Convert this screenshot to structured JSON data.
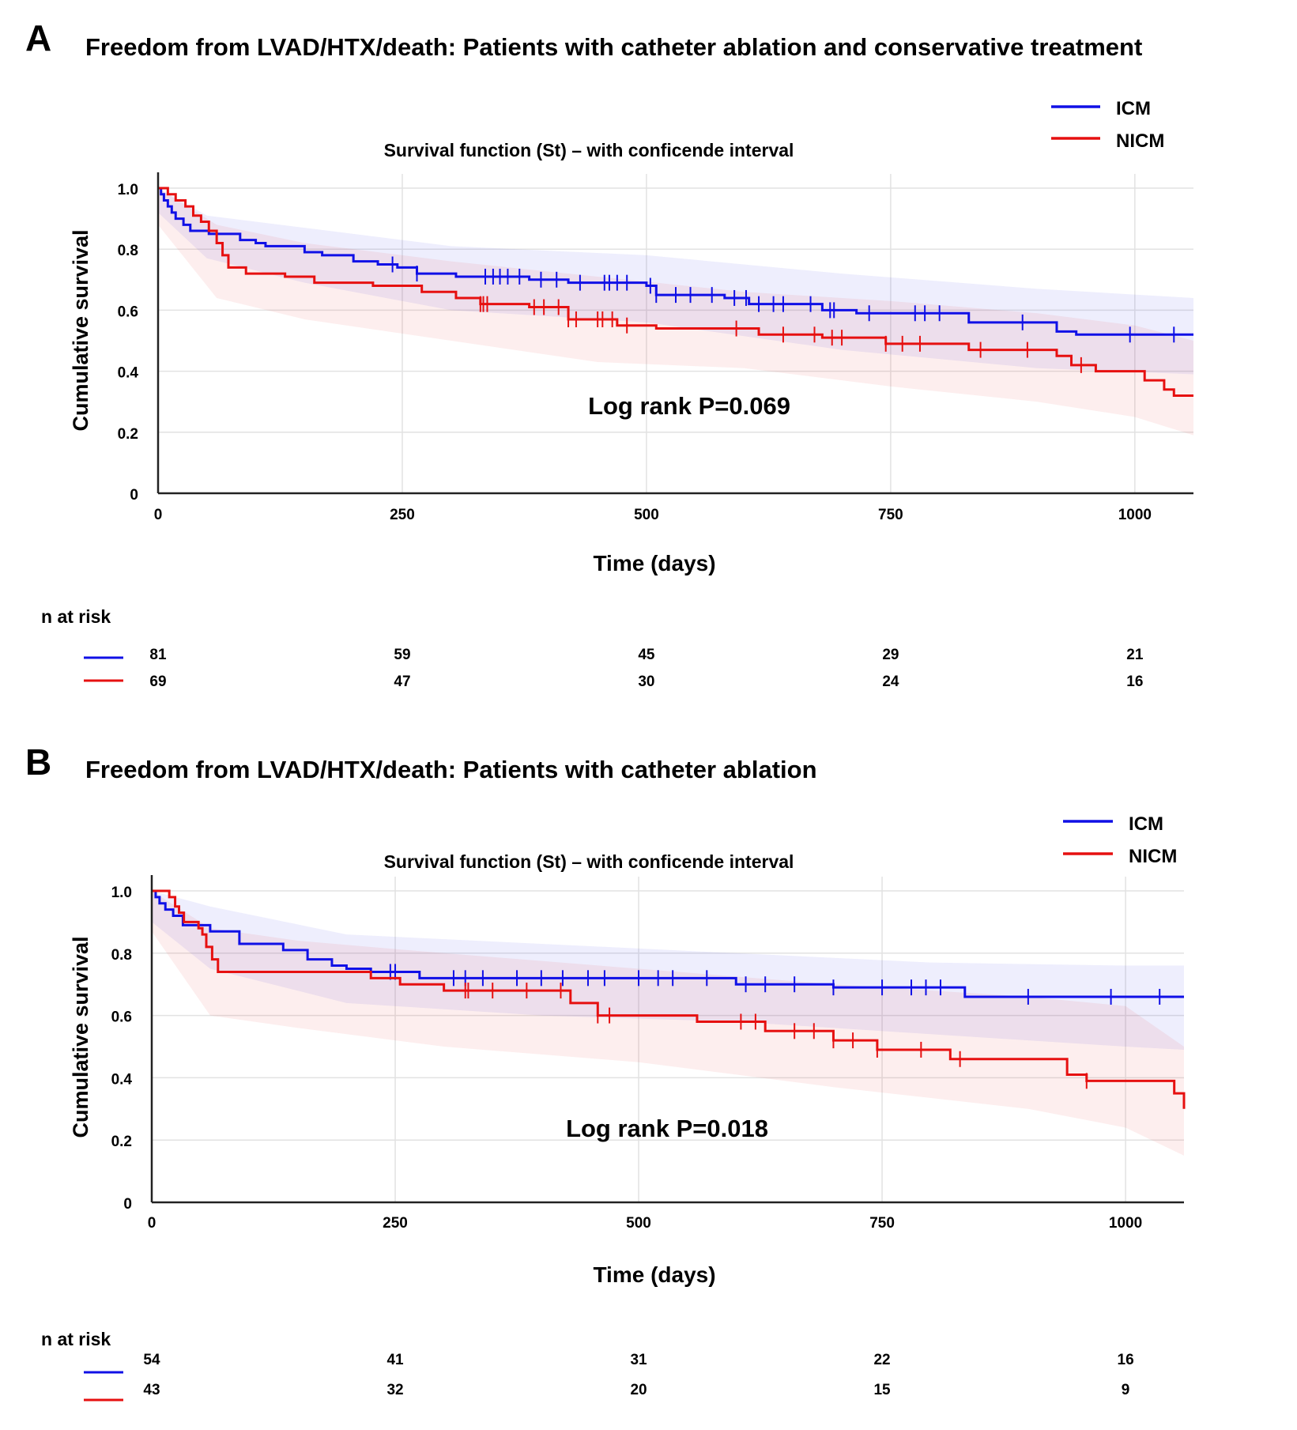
{
  "colors": {
    "icm": "#1010e6",
    "nicm": "#e61010",
    "grid": "#e2e2e2",
    "axis": "#222222"
  },
  "chart_data": [
    {
      "type": "line",
      "panel_letter": "A",
      "title": "Freedom from LVAD/HTX/death: Patients with catheter ablation and conservative treatment",
      "subtitle": "Survival function (St) – with conficende interval",
      "xlabel": "Time (days)",
      "ylabel": "Cumulative survival",
      "annotation": "Log rank P=0.069",
      "xlim": [
        0,
        1060
      ],
      "ylim": [
        0,
        1.0
      ],
      "x_ticks": [
        "0",
        "250",
        "500",
        "750",
        "1000"
      ],
      "y_ticks": [
        "0",
        "0.2",
        "0.4",
        "0.6",
        "0.8",
        "1.0"
      ],
      "legend": [
        "ICM",
        "NICM"
      ],
      "legend_position": "top-right",
      "series": [
        {
          "name": "ICM",
          "steps": [
            [
              0,
              1.0
            ],
            [
              3,
              0.98
            ],
            [
              6,
              0.96
            ],
            [
              10,
              0.94
            ],
            [
              14,
              0.92
            ],
            [
              18,
              0.9
            ],
            [
              26,
              0.88
            ],
            [
              33,
              0.86
            ],
            [
              52,
              0.85
            ],
            [
              84,
              0.83
            ],
            [
              100,
              0.82
            ],
            [
              110,
              0.81
            ],
            [
              150,
              0.79
            ],
            [
              168,
              0.78
            ],
            [
              200,
              0.76
            ],
            [
              225,
              0.75
            ],
            [
              245,
              0.74
            ],
            [
              265,
              0.72
            ],
            [
              305,
              0.71
            ],
            [
              380,
              0.7
            ],
            [
              420,
              0.69
            ],
            [
              470,
              0.69
            ],
            [
              500,
              0.68
            ],
            [
              510,
              0.65
            ],
            [
              580,
              0.64
            ],
            [
              605,
              0.62
            ],
            [
              680,
              0.6
            ],
            [
              715,
              0.59
            ],
            [
              830,
              0.56
            ],
            [
              920,
              0.53
            ],
            [
              940,
              0.52
            ],
            [
              1060,
              0.52
            ]
          ],
          "censor_x": [
            240,
            265,
            335,
            343,
            350,
            358,
            370,
            392,
            408,
            432,
            457,
            462,
            470,
            480,
            504,
            510,
            530,
            545,
            567,
            590,
            602,
            615,
            630,
            640,
            668,
            688,
            692,
            728,
            775,
            785,
            800,
            885,
            995,
            1040
          ],
          "ci_lower": [
            [
              0,
              0.92
            ],
            [
              50,
              0.77
            ],
            [
              150,
              0.69
            ],
            [
              300,
              0.6
            ],
            [
              500,
              0.56
            ],
            [
              700,
              0.47
            ],
            [
              900,
              0.41
            ],
            [
              1060,
              0.39
            ]
          ],
          "ci_upper": [
            [
              0,
              1.0
            ],
            [
              50,
              0.91
            ],
            [
              150,
              0.87
            ],
            [
              300,
              0.81
            ],
            [
              500,
              0.78
            ],
            [
              700,
              0.72
            ],
            [
              900,
              0.67
            ],
            [
              1060,
              0.64
            ]
          ]
        },
        {
          "name": "NICM",
          "steps": [
            [
              0,
              1.0
            ],
            [
              10,
              0.98
            ],
            [
              18,
              0.96
            ],
            [
              28,
              0.94
            ],
            [
              36,
              0.91
            ],
            [
              44,
              0.89
            ],
            [
              52,
              0.86
            ],
            [
              60,
              0.82
            ],
            [
              66,
              0.78
            ],
            [
              72,
              0.74
            ],
            [
              90,
              0.72
            ],
            [
              130,
              0.71
            ],
            [
              160,
              0.69
            ],
            [
              220,
              0.68
            ],
            [
              270,
              0.66
            ],
            [
              305,
              0.64
            ],
            [
              330,
              0.62
            ],
            [
              380,
              0.61
            ],
            [
              420,
              0.57
            ],
            [
              470,
              0.55
            ],
            [
              510,
              0.54
            ],
            [
              615,
              0.52
            ],
            [
              680,
              0.51
            ],
            [
              745,
              0.49
            ],
            [
              830,
              0.47
            ],
            [
              920,
              0.45
            ],
            [
              935,
              0.42
            ],
            [
              960,
              0.4
            ],
            [
              1010,
              0.37
            ],
            [
              1030,
              0.34
            ],
            [
              1040,
              0.32
            ],
            [
              1060,
              0.32
            ]
          ],
          "censor_x": [
            330,
            333,
            337,
            385,
            395,
            410,
            420,
            428,
            450,
            455,
            465,
            480,
            592,
            640,
            672,
            690,
            700,
            745,
            762,
            780,
            842,
            890,
            945
          ],
          "ci_lower": [
            [
              0,
              0.88
            ],
            [
              60,
              0.64
            ],
            [
              150,
              0.57
            ],
            [
              300,
              0.5
            ],
            [
              450,
              0.43
            ],
            [
              600,
              0.41
            ],
            [
              750,
              0.35
            ],
            [
              900,
              0.3
            ],
            [
              1000,
              0.25
            ],
            [
              1060,
              0.19
            ]
          ],
          "ci_upper": [
            [
              0,
              1.0
            ],
            [
              60,
              0.88
            ],
            [
              150,
              0.82
            ],
            [
              300,
              0.76
            ],
            [
              450,
              0.71
            ],
            [
              600,
              0.66
            ],
            [
              750,
              0.63
            ],
            [
              900,
              0.59
            ],
            [
              1000,
              0.55
            ],
            [
              1060,
              0.5
            ]
          ]
        }
      ],
      "risk_table": {
        "label": "n at risk",
        "times": [
          0,
          250,
          500,
          750,
          1000
        ],
        "rows": [
          {
            "name": "ICM",
            "values": [
              "81",
              "59",
              "45",
              "29",
              "21"
            ]
          },
          {
            "name": "NICM",
            "values": [
              "69",
              "47",
              "30",
              "24",
              "16"
            ]
          }
        ]
      }
    },
    {
      "type": "line",
      "panel_letter": "B",
      "title": "Freedom from LVAD/HTX/death: Patients with catheter ablation",
      "subtitle": "Survival function (St) – with conficende interval",
      "xlabel": "Time (days)",
      "ylabel": "Cumulative survival",
      "annotation": "Log rank P=0.018",
      "xlim": [
        0,
        1060
      ],
      "ylim": [
        0,
        1.0
      ],
      "x_ticks": [
        "0",
        "250",
        "500",
        "750",
        "1000"
      ],
      "y_ticks": [
        "0",
        "0.2",
        "0.4",
        "0.6",
        "0.8",
        "1.0"
      ],
      "legend": [
        "ICM",
        "NICM"
      ],
      "legend_position": "top-right",
      "series": [
        {
          "name": "ICM",
          "steps": [
            [
              0,
              1.0
            ],
            [
              4,
              0.98
            ],
            [
              8,
              0.96
            ],
            [
              14,
              0.94
            ],
            [
              22,
              0.92
            ],
            [
              32,
              0.89
            ],
            [
              60,
              0.87
            ],
            [
              90,
              0.83
            ],
            [
              135,
              0.81
            ],
            [
              160,
              0.78
            ],
            [
              185,
              0.76
            ],
            [
              200,
              0.75
            ],
            [
              225,
              0.74
            ],
            [
              275,
              0.72
            ],
            [
              600,
              0.7
            ],
            [
              700,
              0.69
            ],
            [
              835,
              0.66
            ],
            [
              1060,
              0.66
            ]
          ],
          "censor_x": [
            245,
            250,
            310,
            322,
            340,
            375,
            400,
            422,
            448,
            465,
            500,
            520,
            535,
            570,
            610,
            630,
            660,
            700,
            750,
            780,
            795,
            810,
            900,
            985,
            1035
          ],
          "ci_lower": [
            [
              0,
              0.9
            ],
            [
              60,
              0.75
            ],
            [
              200,
              0.64
            ],
            [
              400,
              0.6
            ],
            [
              600,
              0.58
            ],
            [
              800,
              0.54
            ],
            [
              1000,
              0.5
            ],
            [
              1060,
              0.49
            ]
          ],
          "ci_upper": [
            [
              0,
              1.0
            ],
            [
              60,
              0.95
            ],
            [
              200,
              0.86
            ],
            [
              400,
              0.83
            ],
            [
              600,
              0.8
            ],
            [
              800,
              0.77
            ],
            [
              1000,
              0.76
            ],
            [
              1060,
              0.76
            ]
          ]
        },
        {
          "name": "NICM",
          "steps": [
            [
              0,
              1.0
            ],
            [
              18,
              0.98
            ],
            [
              24,
              0.95
            ],
            [
              28,
              0.93
            ],
            [
              33,
              0.9
            ],
            [
              48,
              0.88
            ],
            [
              52,
              0.86
            ],
            [
              56,
              0.82
            ],
            [
              62,
              0.78
            ],
            [
              68,
              0.74
            ],
            [
              160,
              0.74
            ],
            [
              225,
              0.72
            ],
            [
              255,
              0.7
            ],
            [
              300,
              0.68
            ],
            [
              430,
              0.64
            ],
            [
              458,
              0.6
            ],
            [
              560,
              0.58
            ],
            [
              630,
              0.55
            ],
            [
              700,
              0.52
            ],
            [
              745,
              0.49
            ],
            [
              820,
              0.46
            ],
            [
              940,
              0.41
            ],
            [
              960,
              0.39
            ],
            [
              1050,
              0.35
            ],
            [
              1060,
              0.3
            ]
          ],
          "censor_x": [
            322,
            325,
            350,
            385,
            420,
            458,
            470,
            605,
            620,
            660,
            680,
            700,
            720,
            745,
            790,
            830,
            960
          ],
          "ci_lower": [
            [
              0,
              0.87
            ],
            [
              60,
              0.6
            ],
            [
              150,
              0.56
            ],
            [
              300,
              0.5
            ],
            [
              500,
              0.45
            ],
            [
              700,
              0.37
            ],
            [
              900,
              0.3
            ],
            [
              1000,
              0.24
            ],
            [
              1060,
              0.15
            ]
          ],
          "ci_upper": [
            [
              0,
              1.0
            ],
            [
              60,
              0.88
            ],
            [
              150,
              0.84
            ],
            [
              300,
              0.8
            ],
            [
              500,
              0.75
            ],
            [
              700,
              0.7
            ],
            [
              900,
              0.66
            ],
            [
              1000,
              0.63
            ],
            [
              1060,
              0.5
            ]
          ]
        }
      ],
      "risk_table": {
        "label": "n at risk",
        "times": [
          0,
          250,
          500,
          750,
          1000
        ],
        "rows": [
          {
            "name": "ICM",
            "values": [
              "54",
              "41",
              "31",
              "22",
              "16"
            ]
          },
          {
            "name": "NICM",
            "values": [
              "43",
              "32",
              "20",
              "15",
              "9"
            ]
          }
        ]
      }
    }
  ]
}
